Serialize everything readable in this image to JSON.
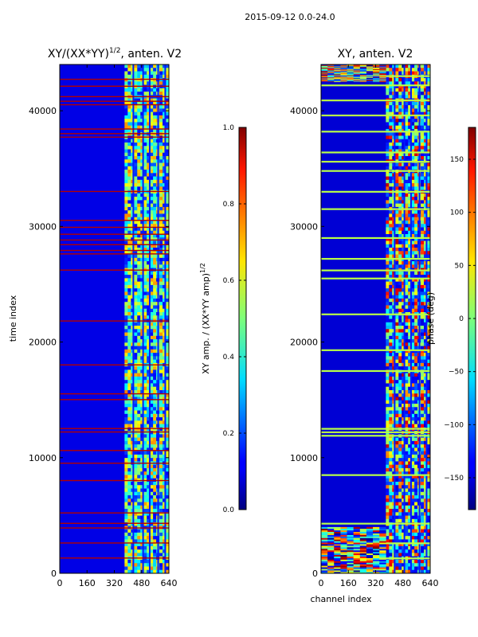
{
  "figure_title": "2015-09-12 0.0-24.0",
  "chart_data": [
    {
      "type": "heatmap",
      "title": "XY/(XX*YY)^{1/2}, anten. V2",
      "title_main": "XY/(XX*YY)",
      "title_exp": "1/2",
      "title_suffix": ", anten. V2",
      "xlabel": "",
      "ylabel": "time index",
      "xlim": [
        0,
        640
      ],
      "ylim": [
        0,
        44000
      ],
      "xticks": [
        0,
        160,
        320,
        480,
        640
      ],
      "yticks": [
        0,
        10000,
        20000,
        30000,
        40000
      ],
      "colorbar": {
        "label": "XY amp. / (XX*YY amp)^{1/2}",
        "label_main": "XY amp. / (XX*YY amp)",
        "label_exp": "1/2",
        "range": [
          0.0,
          1.0
        ],
        "ticks": [
          "0.0",
          "0.2",
          "0.4",
          "0.6",
          "0.8",
          "1.0"
        ],
        "colormap": "jet"
      },
      "features": {
        "background_value": 0.1,
        "band_start_channel": 380,
        "band_end_channel": 640,
        "band_typical_value": 0.45,
        "flagged_rows_value": 0.95,
        "flagged_rows_time_index": [
          1300,
          2600,
          3900,
          4300,
          5200,
          8000,
          9500,
          10600,
          12200,
          12500,
          15000,
          15500,
          18000,
          21800,
          26200,
          27600,
          27900,
          28400,
          28800,
          29300,
          29900,
          30500,
          33000,
          37700,
          38000,
          38400,
          40500,
          40800,
          41200,
          42100,
          42700
        ]
      }
    },
    {
      "type": "heatmap",
      "title": "XY, anten. V2",
      "xlabel": "channel index",
      "ylabel": "",
      "xlim": [
        0,
        640
      ],
      "ylim": [
        0,
        44000
      ],
      "xticks": [
        0,
        160,
        320,
        480,
        640
      ],
      "yticks": [
        0,
        10000,
        20000,
        30000,
        40000
      ],
      "colorbar": {
        "label": "phase (deg)",
        "range": [
          -180,
          180
        ],
        "ticks": [
          "150",
          "100",
          "50",
          "0",
          "−50",
          "−100",
          "−150"
        ],
        "tick_values": [
          150,
          100,
          50,
          0,
          -50,
          -100,
          -150
        ],
        "colormap": "jet"
      },
      "features": {
        "background_value_deg": -150,
        "band_start_channel": 380,
        "band_end_channel": 640,
        "flagged_rows_value_deg": 20,
        "flagged_rows_time_index": [
          1300,
          2600,
          4300,
          8500,
          11900,
          12200,
          12500,
          17500,
          19300,
          22400,
          25500,
          26200,
          27200,
          29000,
          31500,
          33000,
          34800,
          35600,
          36400,
          38200,
          39600,
          40900,
          42200,
          43000
        ]
      }
    }
  ]
}
